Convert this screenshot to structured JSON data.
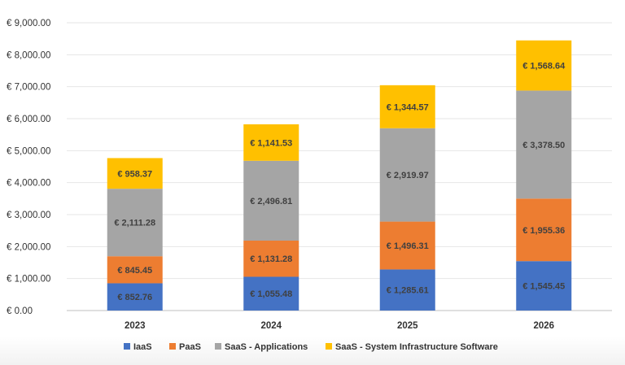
{
  "chart_data": {
    "type": "bar",
    "stacked": true,
    "categories": [
      "2023",
      "2024",
      "2025",
      "2026"
    ],
    "series": [
      {
        "name": "IaaS",
        "color": "#4472c4",
        "values": [
          852.76,
          1055.48,
          1285.61,
          1545.45
        ],
        "labels": [
          "€ 852.76",
          "€ 1,055.48",
          "€ 1,285.61",
          "€ 1,545.45"
        ]
      },
      {
        "name": "PaaS",
        "color": "#ed7d31",
        "values": [
          845.45,
          1131.28,
          1496.31,
          1955.36
        ],
        "labels": [
          "€ 845.45",
          "€ 1,131.28",
          "€ 1,496.31",
          "€ 1,955.36"
        ]
      },
      {
        "name": "SaaS - Applications",
        "color": "#a5a5a5",
        "values": [
          2111.28,
          2496.81,
          2919.97,
          3378.5
        ],
        "labels": [
          "€ 2,111.28",
          "€ 2,496.81",
          "€ 2,919.97",
          "€ 3,378.50"
        ]
      },
      {
        "name": "SaaS - System Infrastructure Software",
        "color": "#ffc000",
        "values": [
          958.37,
          1141.53,
          1344.57,
          1568.64
        ],
        "labels": [
          "€ 958.37",
          "€ 1,141.53",
          "€ 1,344.57",
          "€ 1,568.64"
        ]
      }
    ],
    "ylim": [
      0,
      9000
    ],
    "yticks": [
      0,
      1000,
      2000,
      3000,
      4000,
      5000,
      6000,
      7000,
      8000,
      9000
    ],
    "ytick_labels": [
      "€ 0.00",
      "€ 1,000.00",
      "€ 2,000.00",
      "€ 3,000.00",
      "€ 4,000.00",
      "€ 5,000.00",
      "€ 6,000.00",
      "€ 7,000.00",
      "€ 8,000.00",
      "€ 9,000.00"
    ],
    "title": "",
    "xlabel": "",
    "ylabel": "",
    "grid": true,
    "legend": "bottom"
  }
}
